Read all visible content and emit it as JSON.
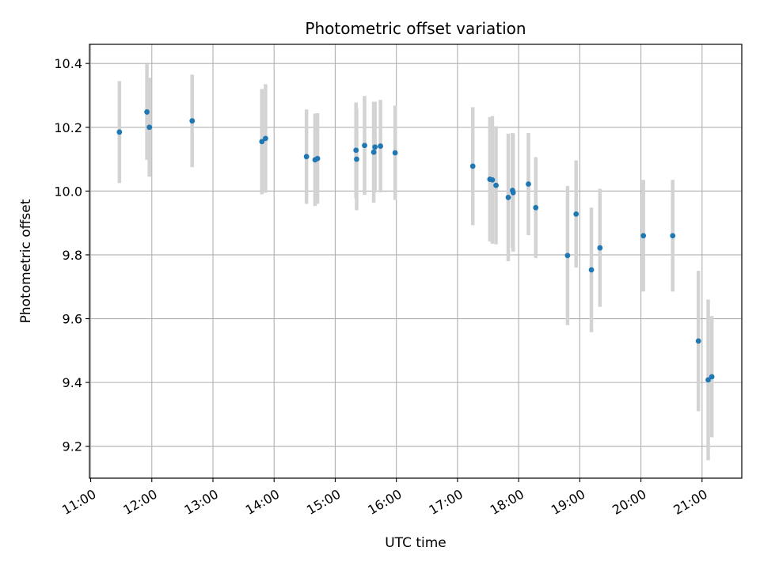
{
  "chart_data": {
    "type": "scatter",
    "title": "Photometric offset variation",
    "xlabel": "UTC time",
    "ylabel": "Photometric offset",
    "x_unit": "hour",
    "xlim": [
      10.98,
      21.65
    ],
    "ylim": [
      9.1,
      10.46
    ],
    "x_ticks": [
      11,
      12,
      13,
      14,
      15,
      16,
      17,
      18,
      19,
      20,
      21
    ],
    "x_tick_labels": [
      "11:00",
      "12:00",
      "13:00",
      "14:00",
      "15:00",
      "16:00",
      "17:00",
      "18:00",
      "19:00",
      "20:00",
      "21:00"
    ],
    "y_ticks": [
      9.2,
      9.4,
      9.6,
      9.8,
      10.0,
      10.2,
      10.4
    ],
    "y_tick_labels": [
      "9.2",
      "9.4",
      "9.6",
      "9.8",
      "10.0",
      "10.2",
      "10.4"
    ],
    "grid": true,
    "colors": {
      "point": "#1f77b4",
      "errorbar": "#d3d3d3",
      "grid": "#b0b0b0"
    },
    "points": [
      {
        "x": 11.47,
        "y": 10.185,
        "err": 0.16
      },
      {
        "x": 11.92,
        "y": 10.248,
        "err": 0.15
      },
      {
        "x": 11.96,
        "y": 10.2,
        "err": 0.155
      },
      {
        "x": 12.66,
        "y": 10.22,
        "err": 0.145
      },
      {
        "x": 13.8,
        "y": 10.155,
        "err": 0.165
      },
      {
        "x": 13.86,
        "y": 10.165,
        "err": 0.17
      },
      {
        "x": 14.53,
        "y": 10.108,
        "err": 0.148
      },
      {
        "x": 14.67,
        "y": 10.098,
        "err": 0.145
      },
      {
        "x": 14.71,
        "y": 10.102,
        "err": 0.142
      },
      {
        "x": 15.34,
        "y": 10.128,
        "err": 0.15
      },
      {
        "x": 15.35,
        "y": 10.1,
        "err": 0.16
      },
      {
        "x": 15.48,
        "y": 10.143,
        "err": 0.155
      },
      {
        "x": 15.63,
        "y": 10.122,
        "err": 0.158
      },
      {
        "x": 15.65,
        "y": 10.138,
        "err": 0.142
      },
      {
        "x": 15.74,
        "y": 10.141,
        "err": 0.145
      },
      {
        "x": 15.98,
        "y": 10.12,
        "err": 0.148
      },
      {
        "x": 17.25,
        "y": 10.078,
        "err": 0.185
      },
      {
        "x": 17.53,
        "y": 10.037,
        "err": 0.195
      },
      {
        "x": 17.57,
        "y": 10.035,
        "err": 0.2
      },
      {
        "x": 17.63,
        "y": 10.018,
        "err": 0.185
      },
      {
        "x": 17.83,
        "y": 9.98,
        "err": 0.2
      },
      {
        "x": 17.9,
        "y": 10.002,
        "err": 0.18
      },
      {
        "x": 17.91,
        "y": 9.995,
        "err": 0.185
      },
      {
        "x": 18.16,
        "y": 10.022,
        "err": 0.16
      },
      {
        "x": 18.28,
        "y": 9.948,
        "err": 0.158
      },
      {
        "x": 18.8,
        "y": 9.798,
        "err": 0.218
      },
      {
        "x": 18.94,
        "y": 9.928,
        "err": 0.168
      },
      {
        "x": 19.19,
        "y": 9.753,
        "err": 0.195
      },
      {
        "x": 19.33,
        "y": 9.822,
        "err": 0.185
      },
      {
        "x": 20.04,
        "y": 9.86,
        "err": 0.175
      },
      {
        "x": 20.52,
        "y": 9.86,
        "err": 0.175
      },
      {
        "x": 20.94,
        "y": 9.53,
        "err": 0.22
      },
      {
        "x": 21.1,
        "y": 9.408,
        "err": 0.252
      },
      {
        "x": 21.16,
        "y": 9.418,
        "err": 0.19
      }
    ]
  }
}
